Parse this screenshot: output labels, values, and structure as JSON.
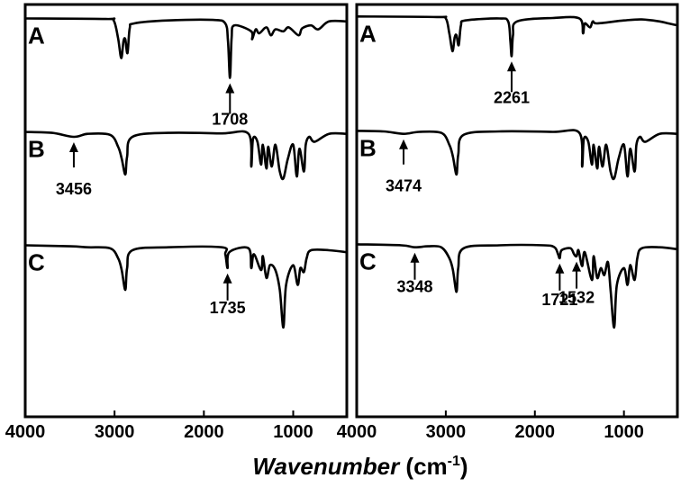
{
  "xlabel": {
    "italic": "Wavenumber",
    "unit_prefix": " (cm",
    "unit_sup": "-1",
    "unit_suffix": ")"
  },
  "chart_data": [
    {
      "type": "line",
      "title": "",
      "xlabel": "Wavenumber (cm-1)",
      "ylabel": "",
      "xlim": [
        4000,
        400
      ],
      "x_reversed": true,
      "y_ticks_shown": false,
      "grid": false,
      "xticks": [
        4000,
        3000,
        2000,
        1000
      ],
      "xtick_labels": [
        "4000",
        "3000",
        "2000",
        "1000"
      ],
      "series": [
        {
          "name": "A",
          "offset": 0.0,
          "baseline": 0.95,
          "points": [
            [
              4000,
              0.95
            ],
            [
              3100,
              0.945
            ],
            [
              3010,
              0.93
            ],
            [
              2960,
              0.75
            ],
            [
              2925,
              0.55
            ],
            [
              2900,
              0.72
            ],
            [
              2880,
              0.74
            ],
            [
              2855,
              0.6
            ],
            [
              2830,
              0.85
            ],
            [
              2780,
              0.9
            ],
            [
              2400,
              0.93
            ],
            [
              1900,
              0.935
            ],
            [
              1760,
              0.9
            ],
            [
              1730,
              0.72
            ],
            [
              1708,
              0.35
            ],
            [
              1690,
              0.75
            ],
            [
              1660,
              0.88
            ],
            [
              1470,
              0.82
            ],
            [
              1460,
              0.74
            ],
            [
              1420,
              0.84
            ],
            [
              1380,
              0.8
            ],
            [
              1300,
              0.86
            ],
            [
              1250,
              0.78
            ],
            [
              1200,
              0.84
            ],
            [
              1110,
              0.82
            ],
            [
              1050,
              0.86
            ],
            [
              940,
              0.78
            ],
            [
              900,
              0.85
            ],
            [
              800,
              0.88
            ],
            [
              720,
              0.84
            ],
            [
              600,
              0.92
            ],
            [
              400,
              0.92
            ]
          ],
          "annotations": [
            {
              "x": 1708,
              "label": "1708"
            }
          ]
        },
        {
          "name": "B",
          "offset": -0.58,
          "baseline": 0.95,
          "points": [
            [
              4000,
              0.95
            ],
            [
              3700,
              0.94
            ],
            [
              3456,
              0.9
            ],
            [
              3300,
              0.93
            ],
            [
              3050,
              0.92
            ],
            [
              2960,
              0.8
            ],
            [
              2920,
              0.68
            ],
            [
              2880,
              0.52
            ],
            [
              2860,
              0.7
            ],
            [
              2800,
              0.9
            ],
            [
              2400,
              0.94
            ],
            [
              1800,
              0.935
            ],
            [
              1500,
              0.93
            ],
            [
              1470,
              0.6
            ],
            [
              1450,
              0.88
            ],
            [
              1400,
              0.85
            ],
            [
              1360,
              0.62
            ],
            [
              1340,
              0.82
            ],
            [
              1300,
              0.58
            ],
            [
              1280,
              0.8
            ],
            [
              1240,
              0.6
            ],
            [
              1200,
              0.82
            ],
            [
              1150,
              0.55
            ],
            [
              1110,
              0.48
            ],
            [
              1060,
              0.68
            ],
            [
              1000,
              0.82
            ],
            [
              960,
              0.5
            ],
            [
              930,
              0.78
            ],
            [
              880,
              0.55
            ],
            [
              860,
              0.82
            ],
            [
              820,
              0.9
            ],
            [
              760,
              0.85
            ],
            [
              600,
              0.93
            ],
            [
              400,
              0.93
            ]
          ],
          "annotations": [
            {
              "x": 3456,
              "label": "3456"
            }
          ]
        },
        {
          "name": "C",
          "offset": -1.15,
          "baseline": 0.95,
          "points": [
            [
              4000,
              0.95
            ],
            [
              3500,
              0.94
            ],
            [
              3300,
              0.93
            ],
            [
              3050,
              0.92
            ],
            [
              2960,
              0.82
            ],
            [
              2920,
              0.7
            ],
            [
              2880,
              0.5
            ],
            [
              2860,
              0.72
            ],
            [
              2800,
              0.9
            ],
            [
              2400,
              0.93
            ],
            [
              1800,
              0.93
            ],
            [
              1760,
              0.86
            ],
            [
              1735,
              0.72
            ],
            [
              1715,
              0.88
            ],
            [
              1500,
              0.92
            ],
            [
              1470,
              0.72
            ],
            [
              1440,
              0.86
            ],
            [
              1360,
              0.7
            ],
            [
              1340,
              0.84
            ],
            [
              1300,
              0.62
            ],
            [
              1260,
              0.75
            ],
            [
              1200,
              0.7
            ],
            [
              1150,
              0.5
            ],
            [
              1110,
              0.12
            ],
            [
              1080,
              0.55
            ],
            [
              1000,
              0.75
            ],
            [
              950,
              0.55
            ],
            [
              920,
              0.72
            ],
            [
              880,
              0.68
            ],
            [
              850,
              0.82
            ],
            [
              800,
              0.9
            ],
            [
              600,
              0.9
            ],
            [
              400,
              0.88
            ]
          ],
          "annotations": [
            {
              "x": 1735,
              "label": "1735"
            }
          ]
        }
      ]
    },
    {
      "type": "line",
      "title": "",
      "xlabel": "Wavenumber (cm-1)",
      "ylabel": "",
      "xlim": [
        4000,
        400
      ],
      "x_reversed": true,
      "y_ticks_shown": false,
      "grid": false,
      "xticks": [
        4000,
        3000,
        2000,
        1000
      ],
      "xtick_labels": [
        "4000",
        "3000",
        "2000",
        "1000"
      ],
      "series": [
        {
          "name": "A",
          "offset": 0.0,
          "baseline": 0.97,
          "points": [
            [
              4000,
              0.97
            ],
            [
              3100,
              0.965
            ],
            [
              3000,
              0.95
            ],
            [
              2960,
              0.8
            ],
            [
              2925,
              0.62
            ],
            [
              2900,
              0.76
            ],
            [
              2880,
              0.78
            ],
            [
              2855,
              0.68
            ],
            [
              2830,
              0.88
            ],
            [
              2780,
              0.93
            ],
            [
              2400,
              0.95
            ],
            [
              2300,
              0.92
            ],
            [
              2275,
              0.72
            ],
            [
              2261,
              0.57
            ],
            [
              2245,
              0.78
            ],
            [
              2200,
              0.92
            ],
            [
              1800,
              0.955
            ],
            [
              1500,
              0.95
            ],
            [
              1460,
              0.8
            ],
            [
              1440,
              0.9
            ],
            [
              1380,
              0.86
            ],
            [
              1350,
              0.92
            ],
            [
              1300,
              0.9
            ],
            [
              1000,
              0.93
            ],
            [
              800,
              0.94
            ],
            [
              600,
              0.92
            ],
            [
              500,
              0.9
            ],
            [
              400,
              0.88
            ]
          ],
          "annotations": [
            {
              "x": 2261,
              "label": "2261"
            }
          ]
        },
        {
          "name": "B",
          "offset": -0.58,
          "baseline": 0.96,
          "points": [
            [
              4000,
              0.96
            ],
            [
              3700,
              0.955
            ],
            [
              3474,
              0.93
            ],
            [
              3300,
              0.95
            ],
            [
              3050,
              0.94
            ],
            [
              2960,
              0.82
            ],
            [
              2920,
              0.7
            ],
            [
              2880,
              0.52
            ],
            [
              2860,
              0.72
            ],
            [
              2800,
              0.92
            ],
            [
              2400,
              0.955
            ],
            [
              1800,
              0.95
            ],
            [
              1500,
              0.94
            ],
            [
              1470,
              0.6
            ],
            [
              1450,
              0.88
            ],
            [
              1400,
              0.85
            ],
            [
              1360,
              0.62
            ],
            [
              1340,
              0.82
            ],
            [
              1300,
              0.58
            ],
            [
              1280,
              0.8
            ],
            [
              1240,
              0.6
            ],
            [
              1200,
              0.82
            ],
            [
              1150,
              0.55
            ],
            [
              1110,
              0.48
            ],
            [
              1060,
              0.68
            ],
            [
              1000,
              0.82
            ],
            [
              960,
              0.5
            ],
            [
              930,
              0.78
            ],
            [
              880,
              0.55
            ],
            [
              860,
              0.82
            ],
            [
              820,
              0.9
            ],
            [
              760,
              0.85
            ],
            [
              600,
              0.93
            ],
            [
              400,
              0.93
            ]
          ],
          "annotations": [
            {
              "x": 3474,
              "label": "3474"
            }
          ]
        },
        {
          "name": "C",
          "offset": -1.15,
          "baseline": 0.96,
          "points": [
            [
              4000,
              0.96
            ],
            [
              3500,
              0.95
            ],
            [
              3348,
              0.93
            ],
            [
              3200,
              0.94
            ],
            [
              3050,
              0.93
            ],
            [
              2960,
              0.82
            ],
            [
              2920,
              0.7
            ],
            [
              2880,
              0.48
            ],
            [
              2860,
              0.72
            ],
            [
              2800,
              0.92
            ],
            [
              2400,
              0.95
            ],
            [
              1900,
              0.95
            ],
            [
              1780,
              0.93
            ],
            [
              1740,
              0.86
            ],
            [
              1721,
              0.82
            ],
            [
              1700,
              0.9
            ],
            [
              1600,
              0.92
            ],
            [
              1560,
              0.86
            ],
            [
              1532,
              0.84
            ],
            [
              1510,
              0.9
            ],
            [
              1470,
              0.74
            ],
            [
              1440,
              0.88
            ],
            [
              1360,
              0.6
            ],
            [
              1340,
              0.84
            ],
            [
              1300,
              0.62
            ],
            [
              1260,
              0.72
            ],
            [
              1220,
              0.65
            ],
            [
              1180,
              0.78
            ],
            [
              1150,
              0.5
            ],
            [
              1110,
              0.12
            ],
            [
              1080,
              0.55
            ],
            [
              1000,
              0.72
            ],
            [
              960,
              0.55
            ],
            [
              930,
              0.75
            ],
            [
              880,
              0.6
            ],
            [
              850,
              0.82
            ],
            [
              800,
              0.92
            ],
            [
              600,
              0.93
            ],
            [
              400,
              0.91
            ]
          ],
          "annotations": [
            {
              "x": 3348,
              "label": "3348"
            },
            {
              "x": 1721,
              "label": "1721"
            },
            {
              "x": 1532,
              "label": "1532"
            }
          ]
        }
      ]
    }
  ]
}
